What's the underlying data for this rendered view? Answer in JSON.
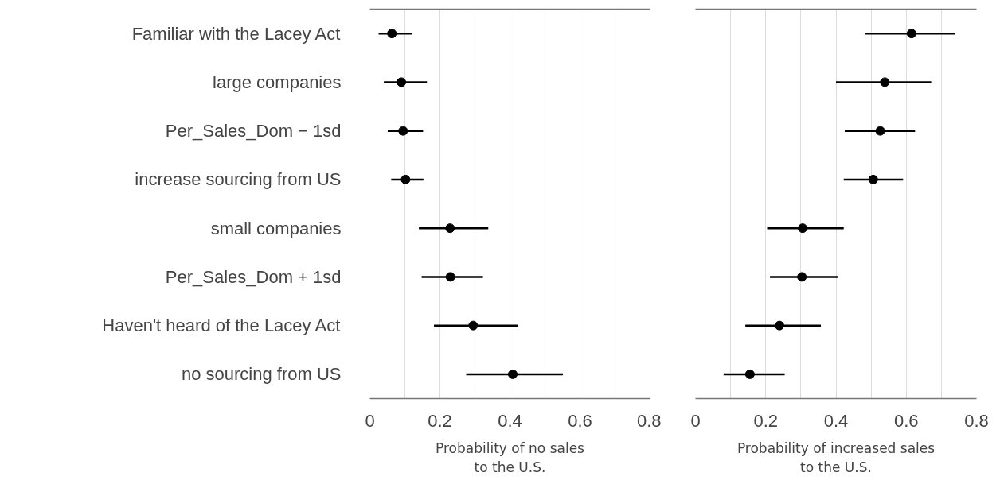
{
  "chart_data": [
    {
      "type": "scatter",
      "orientation": "horizontal",
      "categories": [
        "Familiar with the Lacey Act",
        "large companies",
        "Per_Sales_Dom − 1sd",
        "increase sourcing from US",
        "small companies",
        "Per_Sales_Dom + 1sd",
        "Haven't heard of the Lacey Act",
        "no sourcing from US"
      ],
      "series": [
        {
          "color": "#000000",
          "values": [
            0.063,
            0.09,
            0.095,
            0.102,
            0.229,
            0.23,
            0.295,
            0.408
          ],
          "errors": [
            [
              0.025,
              0.121
            ],
            [
              0.04,
              0.163
            ],
            [
              0.051,
              0.152
            ],
            [
              0.061,
              0.153
            ],
            [
              0.14,
              0.338
            ],
            [
              0.148,
              0.323
            ],
            [
              0.183,
              0.422
            ],
            [
              0.275,
              0.551
            ]
          ]
        }
      ],
      "xlabel": "Probability of no sales to the U.S.",
      "xlim": [
        0,
        0.8
      ],
      "xticks": [
        0,
        {
          "value": 0.1,
          "label": null
        },
        0.2,
        {
          "value": 0.3,
          "label": null
        },
        0.4,
        {
          "value": 0.5,
          "label": null
        },
        0.6,
        {
          "value": 0.7,
          "label": null
        },
        0.8
      ],
      "grid": "x",
      "marker": "circle"
    },
    {
      "type": "scatter",
      "orientation": "horizontal",
      "categories": [
        "Familiar with the Lacey Act",
        "large companies",
        "Per_Sales_Dom − 1sd",
        "increase sourcing from US",
        "small companies",
        "Per_Sales_Dom + 1sd",
        "Haven't heard of the Lacey Act",
        "no sourcing from US"
      ],
      "series": [
        {
          "color": "#000000",
          "values": [
            0.615,
            0.539,
            0.526,
            0.506,
            0.305,
            0.303,
            0.239,
            0.155
          ],
          "errors": [
            [
              0.482,
              0.74
            ],
            [
              0.4,
              0.671
            ],
            [
              0.425,
              0.625
            ],
            [
              0.422,
              0.591
            ],
            [
              0.204,
              0.422
            ],
            [
              0.212,
              0.406
            ],
            [
              0.142,
              0.357
            ],
            [
              0.08,
              0.254
            ]
          ]
        }
      ],
      "xlabel": "Probability of increased sales to the U.S.",
      "xlim": [
        0,
        0.8
      ],
      "xticks": [
        0,
        {
          "value": 0.1,
          "label": null
        },
        0.2,
        {
          "value": 0.3,
          "label": null
        },
        0.4,
        {
          "value": 0.5,
          "label": null
        },
        0.6,
        {
          "value": 0.7,
          "label": null
        },
        0.8
      ],
      "grid": "x",
      "marker": "circle",
      "tick_labels": "x"
    }
  ]
}
